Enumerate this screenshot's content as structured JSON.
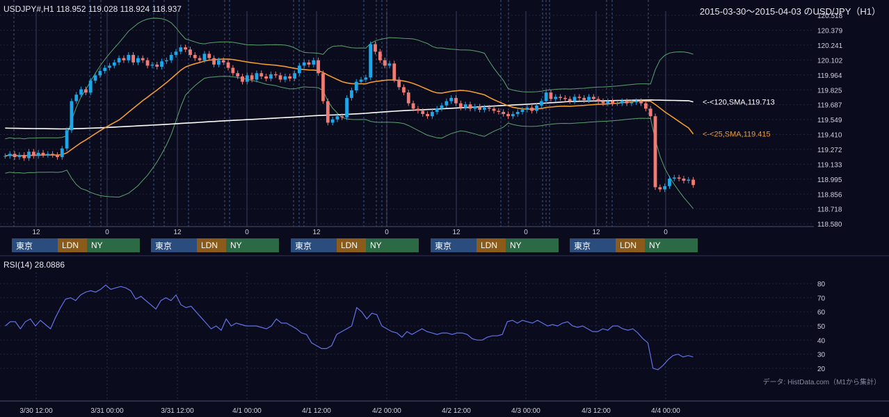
{
  "header": {
    "symbol_info": "USDJPY#,H1 118.952 119.028 118.924 118.937",
    "title": "2015-03-30～2015-04-03 のUSD/JPY（H1）"
  },
  "chart_data": {
    "type": "candlestick",
    "symbol": "USDJPY#",
    "timeframe": "H1",
    "ohlc_last": {
      "open": 118.952,
      "high": 119.028,
      "low": 118.924,
      "close": 118.937
    },
    "price_axis": {
      "ylim": [
        118.58,
        120.518
      ],
      "ticks": [
        "120.518",
        "120.379",
        "120.241",
        "120.102",
        "119.964",
        "119.825",
        "119.687",
        "119.549",
        "119.410",
        "119.272",
        "119.133",
        "118.995",
        "118.856",
        "118.718",
        "118.580"
      ]
    },
    "hour_axis_ticks": [
      "12",
      "0",
      "12",
      "0",
      "12",
      "0",
      "12",
      "0",
      "12",
      "0"
    ],
    "date_axis_ticks": [
      "3/30 12:00",
      "3/31 00:00",
      "3/31 12:00",
      "4/1 00:00",
      "4/1 12:00",
      "4/2 00:00",
      "4/2 12:00",
      "4/3 00:00",
      "4/3 12:00",
      "4/4 00:00"
    ],
    "close_series": [
      119.21,
      119.23,
      119.2,
      119.22,
      119.19,
      119.25,
      119.21,
      119.24,
      119.22,
      119.23,
      119.22,
      119.2,
      119.28,
      119.45,
      119.72,
      119.78,
      119.83,
      119.8,
      119.91,
      119.96,
      120.0,
      120.03,
      120.05,
      120.08,
      120.12,
      120.1,
      120.15,
      120.08,
      120.12,
      120.1,
      120.05,
      120.06,
      120.04,
      120.09,
      120.1,
      120.15,
      120.18,
      120.22,
      120.2,
      120.15,
      120.12,
      120.1,
      120.16,
      120.12,
      120.06,
      120.1,
      120.08,
      120.03,
      119.98,
      119.95,
      119.9,
      119.96,
      119.92,
      119.98,
      119.95,
      119.93,
      119.97,
      119.96,
      119.92,
      119.95,
      119.93,
      119.98,
      120.05,
      120.08,
      120.06,
      120.1,
      119.98,
      119.72,
      119.52,
      119.55,
      119.58,
      119.57,
      119.75,
      119.82,
      119.9,
      119.92,
      119.94,
      120.25,
      120.18,
      120.1,
      120.05,
      120.07,
      119.92,
      119.85,
      119.8,
      119.7,
      119.65,
      119.63,
      119.6,
      119.58,
      119.62,
      119.65,
      119.68,
      119.72,
      119.75,
      119.7,
      119.66,
      119.69,
      119.65,
      119.67,
      119.64,
      119.66,
      119.65,
      119.63,
      119.62,
      119.6,
      119.58,
      119.6,
      119.62,
      119.64,
      119.66,
      119.63,
      119.68,
      119.72,
      119.8,
      119.74,
      119.76,
      119.75,
      119.74,
      119.72,
      119.76,
      119.75,
      119.73,
      119.76,
      119.74,
      119.72,
      119.7,
      119.72,
      119.7,
      119.7,
      119.72,
      119.7,
      119.71,
      119.72,
      119.7,
      119.65,
      119.58,
      118.92,
      118.9,
      118.93,
      119.0,
      119.01,
      119.0,
      118.98,
      118.99,
      118.94
    ],
    "indicators": {
      "sma_long": {
        "name": "<-<120,SMA,119.713",
        "period": 120,
        "last": 119.713,
        "color": "#ffffff"
      },
      "sma_short": {
        "name": "<-<25,SMA,119.415",
        "period": 25,
        "last": 119.415,
        "color": "#f29b30"
      },
      "bollinger_color": "#5aa36e"
    },
    "sessions": [
      {
        "name": "東京",
        "color": "#2b4d7e"
      },
      {
        "name": "LDN",
        "color": "#8a5b1a"
      },
      {
        "name": "NY",
        "color": "#2c6a45"
      }
    ],
    "rsi": {
      "label": "RSI(14) 28.0886",
      "period": 14,
      "last": 28.0886,
      "ylim": [
        15,
        85
      ],
      "ticks": [
        "80",
        "70",
        "60",
        "50",
        "40",
        "30",
        "20"
      ],
      "color": "#6272e8",
      "values": [
        50,
        53,
        53,
        48,
        53,
        55,
        50,
        54,
        51,
        48,
        56,
        63,
        69,
        70,
        68,
        72,
        74,
        75,
        74,
        76,
        79,
        76,
        77,
        78,
        77,
        75,
        69,
        71,
        68,
        65,
        62,
        68,
        70,
        68,
        72,
        65,
        63,
        64,
        60,
        56,
        52,
        48,
        50,
        47,
        55,
        50,
        52,
        51,
        50,
        50,
        50,
        49,
        48,
        50,
        55,
        52,
        52,
        50,
        48,
        45,
        44,
        38,
        36,
        34,
        34,
        36,
        44,
        46,
        48,
        50,
        63,
        60,
        55,
        59,
        58,
        50,
        48,
        46,
        45,
        42,
        46,
        44,
        46,
        48,
        46,
        45,
        44,
        45,
        45,
        44,
        45,
        45,
        44,
        41,
        40,
        40,
        42,
        43,
        43,
        44,
        53,
        54,
        52,
        54,
        53,
        52,
        54,
        52,
        50,
        51,
        50,
        52,
        53,
        50,
        49,
        50,
        48,
        46,
        46,
        48,
        47,
        50,
        50,
        48,
        47,
        48,
        45,
        41,
        38,
        20,
        19,
        22,
        26,
        29,
        30,
        28,
        29,
        28
      ],
      "credit": "データ: HistData.com（M1から集計）"
    }
  },
  "colors": {
    "background": "#0b0b1e",
    "bull": "#1ea7e8",
    "bear": "#ef7c74",
    "grid": "#2a2f4a"
  }
}
